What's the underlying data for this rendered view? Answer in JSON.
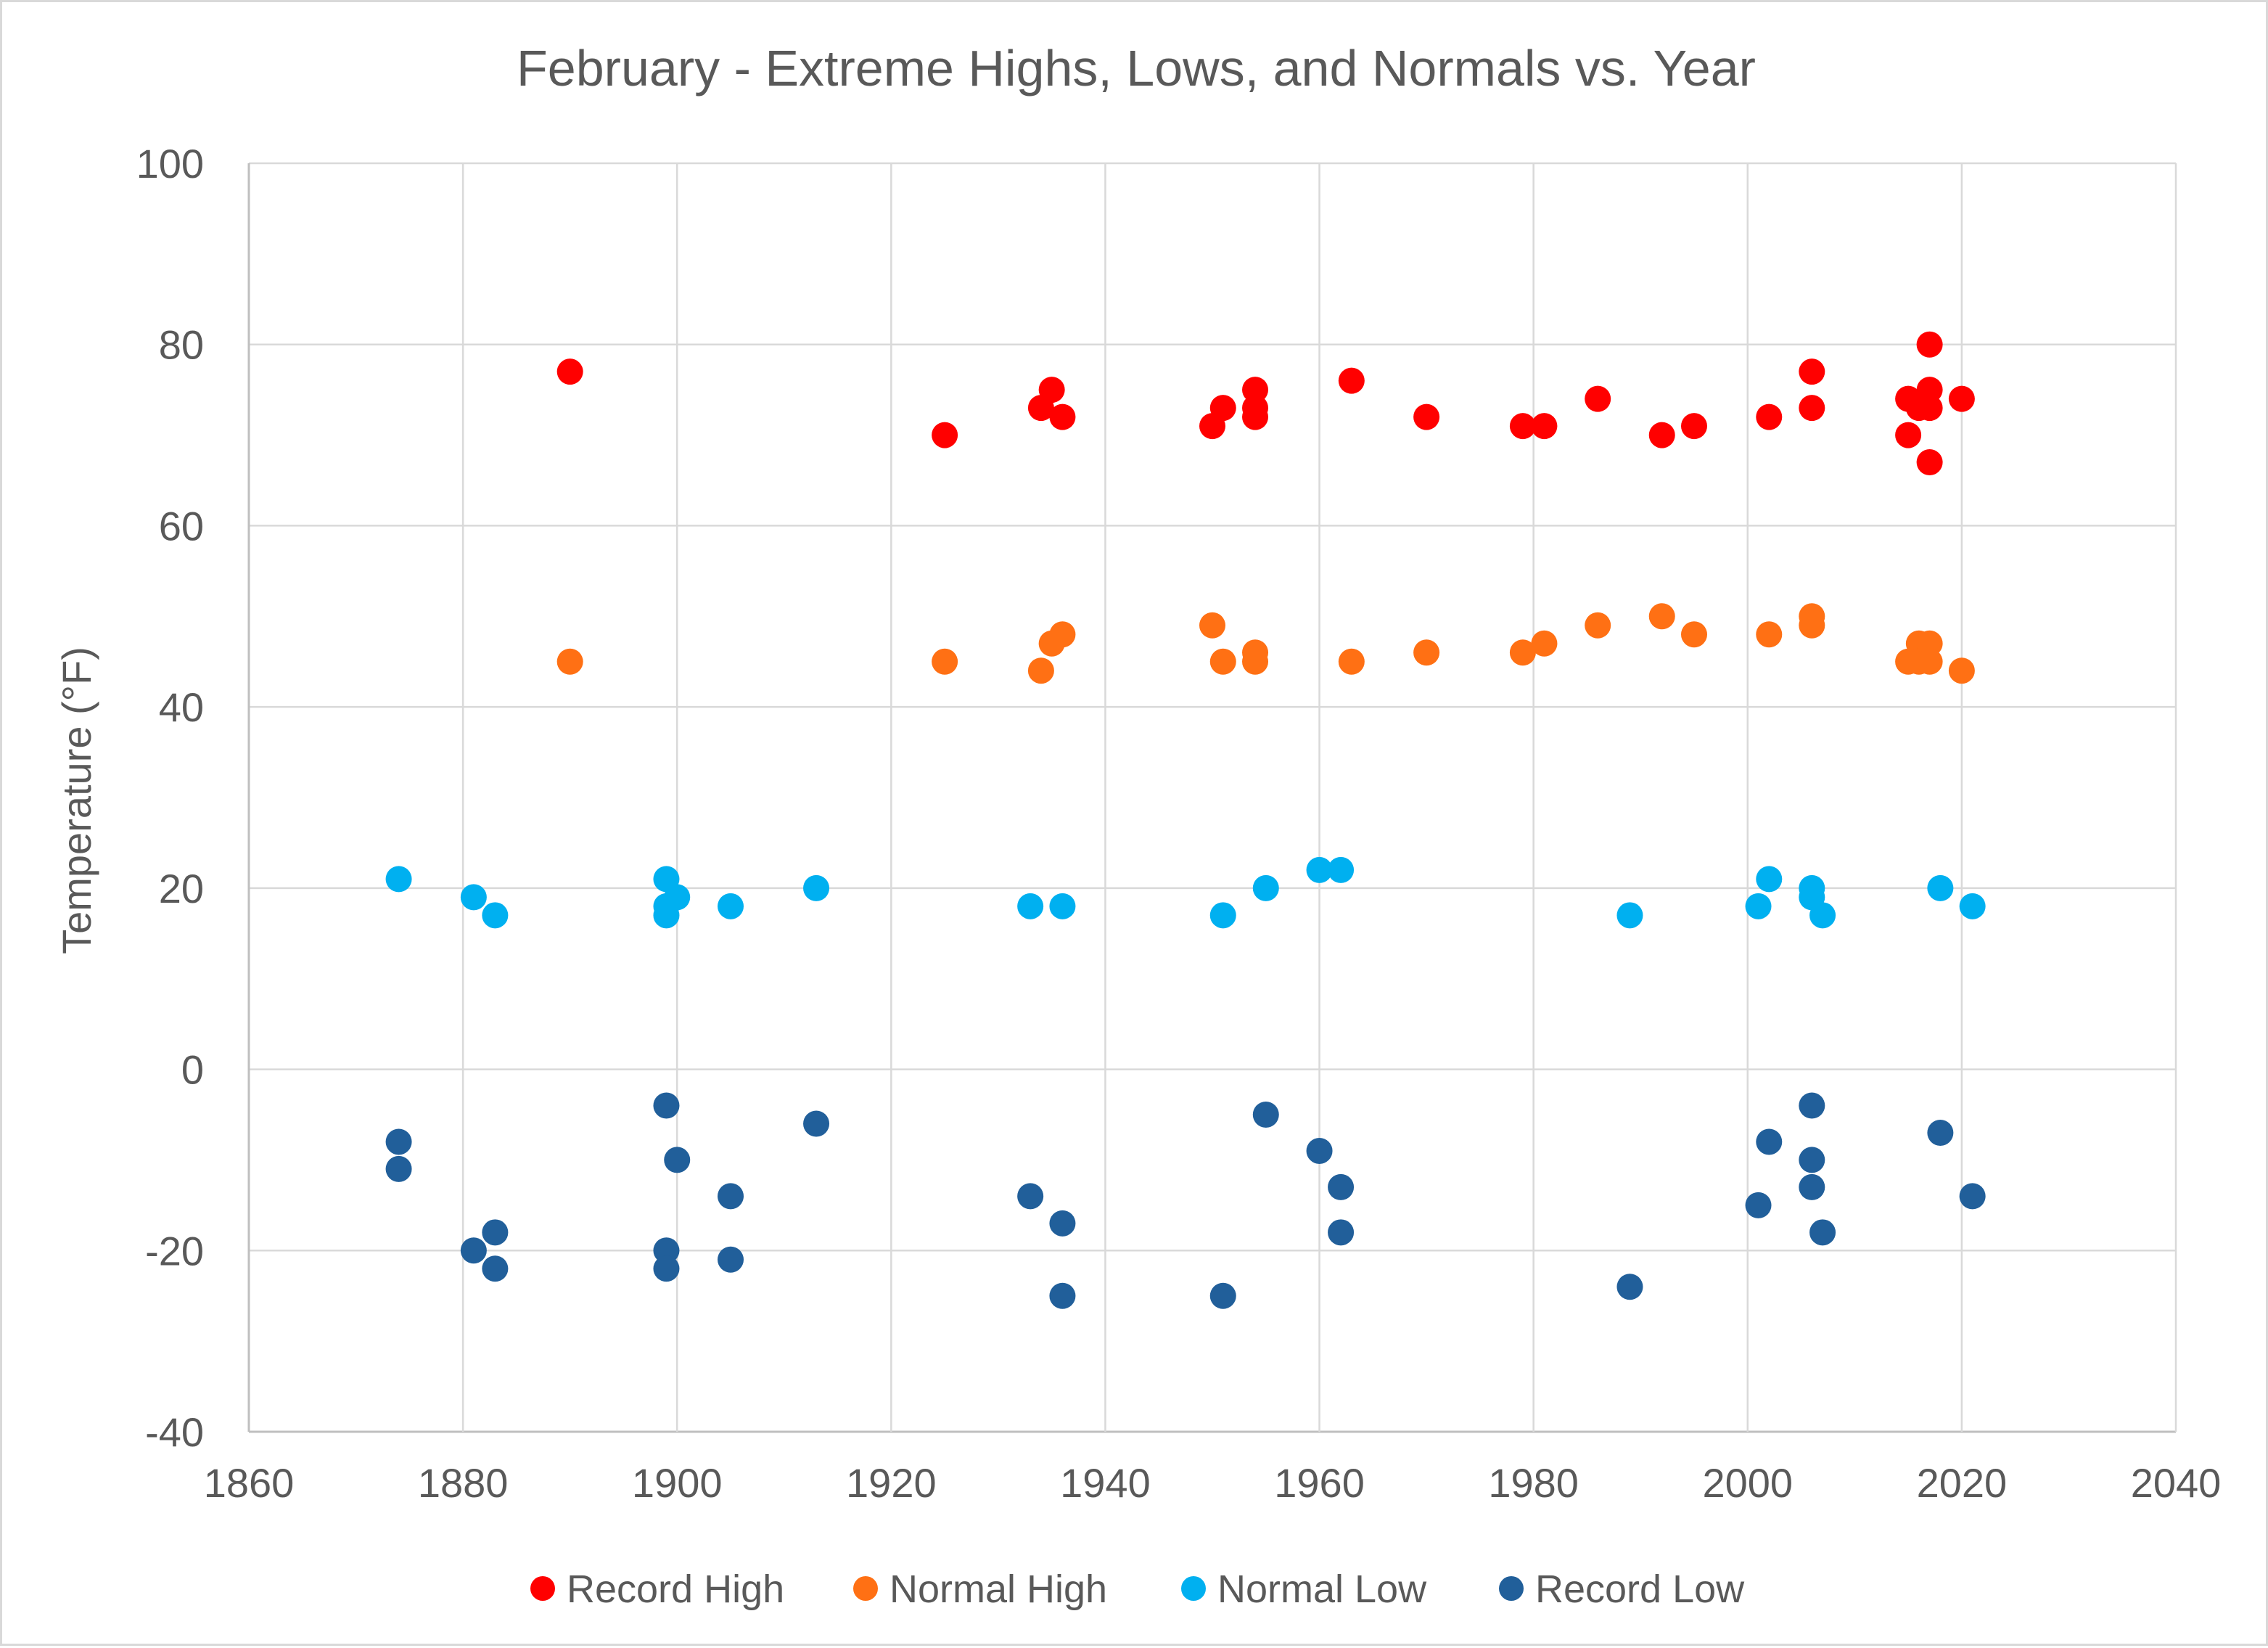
{
  "chart_data": {
    "type": "scatter",
    "title": "February - Extreme Highs, Lows, and Normals vs. Year",
    "xlabel": "",
    "ylabel": "Temperature (°F)",
    "xlim": [
      1860,
      2040
    ],
    "ylim": [
      -40,
      100
    ],
    "x_ticks": [
      1860,
      1880,
      1900,
      1920,
      1940,
      1960,
      1980,
      2000,
      2020,
      2040
    ],
    "y_ticks": [
      -40,
      -20,
      0,
      20,
      40,
      60,
      80,
      100
    ],
    "grid": true,
    "legend_position": "bottom",
    "series": [
      {
        "name": "Record High",
        "color": "#ff0000",
        "points": [
          [
            1890,
            77
          ],
          [
            1925,
            70
          ],
          [
            1934,
            73
          ],
          [
            1935,
            75
          ],
          [
            1936,
            72
          ],
          [
            1950,
            71
          ],
          [
            1951,
            73
          ],
          [
            1954,
            75
          ],
          [
            1954,
            73
          ],
          [
            1954,
            72
          ],
          [
            1963,
            76
          ],
          [
            1970,
            72
          ],
          [
            1979,
            71
          ],
          [
            1981,
            71
          ],
          [
            1986,
            74
          ],
          [
            1992,
            70
          ],
          [
            1995,
            71
          ],
          [
            2002,
            72
          ],
          [
            2006,
            77
          ],
          [
            2006,
            73
          ],
          [
            2015,
            74
          ],
          [
            2015,
            70
          ],
          [
            2016,
            73
          ],
          [
            2017,
            80
          ],
          [
            2017,
            75
          ],
          [
            2017,
            73
          ],
          [
            2017,
            67
          ],
          [
            2020,
            74
          ]
        ]
      },
      {
        "name": "Normal High",
        "color": "#ff7014",
        "points": [
          [
            1890,
            45
          ],
          [
            1925,
            45
          ],
          [
            1934,
            44
          ],
          [
            1935,
            47
          ],
          [
            1936,
            48
          ],
          [
            1950,
            49
          ],
          [
            1951,
            45
          ],
          [
            1954,
            46
          ],
          [
            1954,
            45
          ],
          [
            1963,
            45
          ],
          [
            1970,
            46
          ],
          [
            1979,
            46
          ],
          [
            1981,
            47
          ],
          [
            1986,
            49
          ],
          [
            1992,
            50
          ],
          [
            1995,
            48
          ],
          [
            2002,
            48
          ],
          [
            2006,
            50
          ],
          [
            2006,
            49
          ],
          [
            2015,
            45
          ],
          [
            2016,
            47
          ],
          [
            2016,
            45
          ],
          [
            2017,
            47
          ],
          [
            2017,
            45
          ],
          [
            2020,
            44
          ]
        ]
      },
      {
        "name": "Normal Low",
        "color": "#00b0f0",
        "points": [
          [
            1874,
            21
          ],
          [
            1881,
            19
          ],
          [
            1883,
            17
          ],
          [
            1899,
            21
          ],
          [
            1899,
            18
          ],
          [
            1899,
            17
          ],
          [
            1900,
            19
          ],
          [
            1905,
            18
          ],
          [
            1913,
            20
          ],
          [
            1933,
            18
          ],
          [
            1936,
            18
          ],
          [
            1951,
            17
          ],
          [
            1955,
            20
          ],
          [
            1960,
            22
          ],
          [
            1962,
            22
          ],
          [
            1989,
            17
          ],
          [
            2001,
            18
          ],
          [
            2002,
            21
          ],
          [
            2006,
            20
          ],
          [
            2006,
            19
          ],
          [
            2007,
            17
          ],
          [
            2018,
            20
          ],
          [
            2021,
            18
          ]
        ]
      },
      {
        "name": "Record Low",
        "color": "#215f9a",
        "points": [
          [
            1874,
            -8
          ],
          [
            1874,
            -11
          ],
          [
            1881,
            -20
          ],
          [
            1883,
            -18
          ],
          [
            1883,
            -22
          ],
          [
            1899,
            -4
          ],
          [
            1899,
            -20
          ],
          [
            1899,
            -22
          ],
          [
            1900,
            -10
          ],
          [
            1905,
            -14
          ],
          [
            1905,
            -21
          ],
          [
            1913,
            -6
          ],
          [
            1933,
            -14
          ],
          [
            1936,
            -17
          ],
          [
            1936,
            -25
          ],
          [
            1951,
            -25
          ],
          [
            1955,
            -5
          ],
          [
            1960,
            -9
          ],
          [
            1962,
            -13
          ],
          [
            1962,
            -18
          ],
          [
            1989,
            -24
          ],
          [
            2001,
            -15
          ],
          [
            2002,
            -8
          ],
          [
            2006,
            -4
          ],
          [
            2006,
            -10
          ],
          [
            2006,
            -13
          ],
          [
            2007,
            -18
          ],
          [
            2018,
            -7
          ],
          [
            2021,
            -14
          ]
        ]
      }
    ]
  }
}
